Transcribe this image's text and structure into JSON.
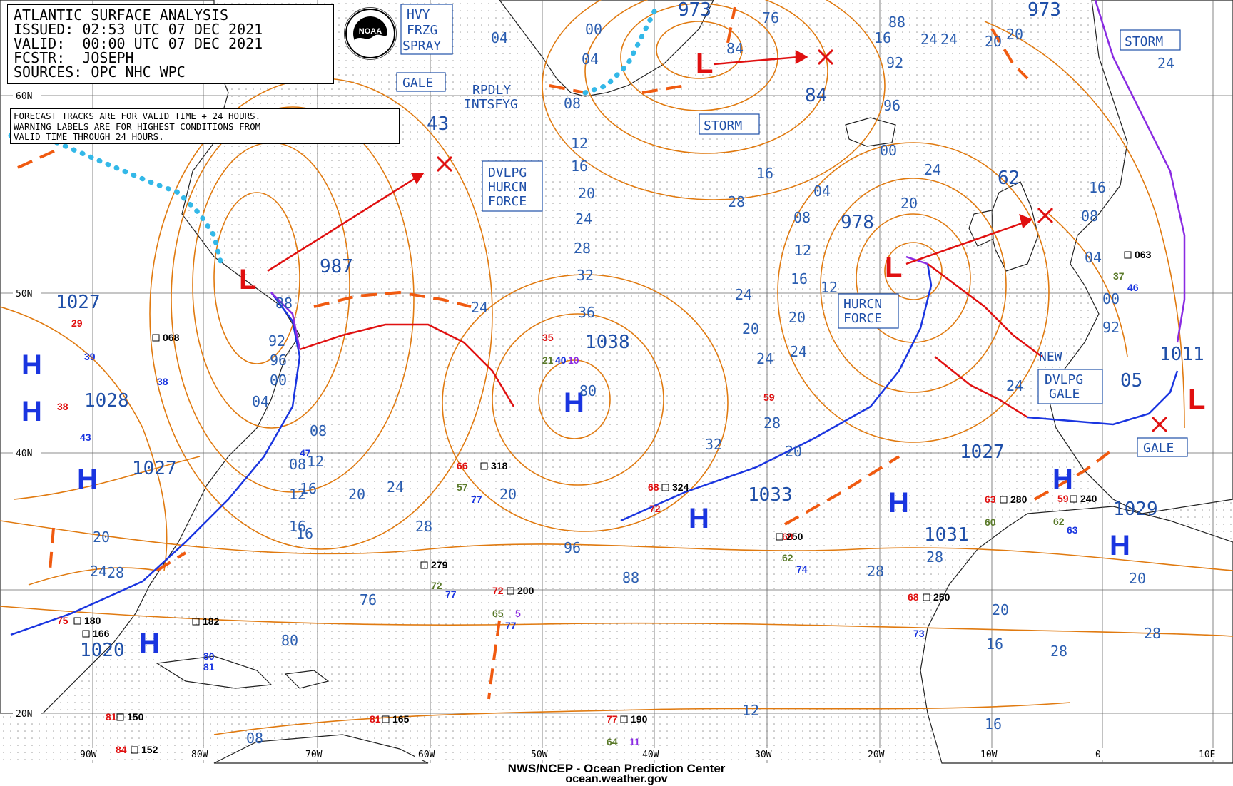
{
  "header": {
    "lines": [
      "ATLANTIC SURFACE ANALYSIS",
      "ISSUED: 02:53 UTC 07 DEC 2021",
      "VALID:  00:00 UTC 07 DEC 2021",
      "FCSTR:  JOSEPH",
      "SOURCES: OPC NHC WPC"
    ]
  },
  "notes": [
    "FORECAST TRACKS ARE FOR VALID TIME + 24 HOURS.",
    "WARNING LABELS ARE FOR HIGHEST CONDITIONS FROM",
    "VALID TIME THROUGH 24 HOURS."
  ],
  "logo": {
    "icon": "noaa-logo-icon",
    "text": "NOAA"
  },
  "footer": {
    "line1": "NWS/NCEP - Ocean Prediction Center",
    "line2": "ocean.weather.gov"
  },
  "lat_labels": [
    "60N",
    "50N",
    "40N",
    "20N"
  ],
  "lon_labels": [
    "90W",
    "80W",
    "70W",
    "60W",
    "50W",
    "40W",
    "30W",
    "20W",
    "10W",
    "0",
    "10E"
  ],
  "warnings": {
    "hvy_frzg_spray": [
      "HVY",
      "FRZG",
      "SPRAY"
    ],
    "gale_nw": "GALE",
    "storm_center": "STORM",
    "storm_ne": "STORM",
    "dvlpg_hurcn": [
      "DVLPG",
      "HURCN",
      "FORCE"
    ],
    "hurcn_force": [
      "HURCN",
      "FORCE"
    ],
    "dvlpg_gale": [
      "DVLPG",
      "GALE"
    ],
    "gale_e": "GALE",
    "rpdly": [
      "RPDLY",
      "INTSFYG"
    ],
    "new": "NEW"
  },
  "pressure_centers": {
    "low_987": "987",
    "low_973a": "973",
    "low_973b": "973",
    "low_978": "978",
    "low_1011": "1011",
    "high_1027a": "1027",
    "high_1028": "1028",
    "high_1027b": "1027",
    "high_1020": "1020",
    "high_1038": "1038",
    "high_1033": "1033",
    "high_1027c": "1027",
    "high_1031": "1031",
    "high_1029": "1029",
    "fcst_43": "43",
    "fcst_84": "84",
    "fcst_62": "62",
    "fcst_05": "05"
  },
  "center_symbols": {
    "high": "H",
    "low": "L"
  },
  "isobar_labels": [
    "04",
    "00",
    "04",
    "08",
    "12",
    "16",
    "20",
    "24",
    "28",
    "32",
    "36",
    "80",
    "76",
    "84",
    "88",
    "92",
    "96",
    "00",
    "04",
    "08",
    "12",
    "16",
    "20",
    "24",
    "28",
    "32",
    "20",
    "24",
    "28",
    "16",
    "08",
    "12",
    "16",
    "20",
    "24",
    "88",
    "92",
    "96",
    "00",
    "04",
    "08",
    "12",
    "16",
    "20",
    "24",
    "28",
    "24",
    "20",
    "16",
    "28",
    "28",
    "24",
    "20",
    "24",
    "20",
    "16",
    "08",
    "04",
    "00",
    "92",
    "96",
    "88",
    "76",
    "80",
    "08",
    "12",
    "16",
    "20",
    "28",
    "24",
    "20",
    "16",
    "24",
    "12",
    "16",
    "28",
    "24",
    "20",
    "24",
    "20",
    "28"
  ],
  "observations": [
    {
      "t": "29",
      "c": "#e01010"
    },
    {
      "t": "39",
      "c": "#1a35e0"
    },
    {
      "t": "068",
      "c": "#000"
    },
    {
      "t": "38",
      "c": "#1a35e0"
    },
    {
      "t": "35",
      "c": "#e01010"
    },
    {
      "t": "21",
      "c": "#5a7a2a"
    },
    {
      "t": "40",
      "c": "#1a35e0"
    },
    {
      "t": "10",
      "c": "#8a2be2"
    },
    {
      "t": "66",
      "c": "#e01010"
    },
    {
      "t": "318",
      "c": "#000"
    },
    {
      "t": "57",
      "c": "#5a7a2a"
    },
    {
      "t": "77",
      "c": "#1a35e0"
    },
    {
      "t": "68",
      "c": "#e01010"
    },
    {
      "t": "324",
      "c": "#000"
    },
    {
      "t": "72",
      "c": "#e01010"
    },
    {
      "t": "279",
      "c": "#000"
    },
    {
      "t": "72",
      "c": "#5a7a2a"
    },
    {
      "t": "77",
      "c": "#1a35e0"
    },
    {
      "t": "72",
      "c": "#e01010"
    },
    {
      "t": "200",
      "c": "#000"
    },
    {
      "t": "65",
      "c": "#5a7a2a"
    },
    {
      "t": "5",
      "c": "#8a2be2"
    },
    {
      "t": "77",
      "c": "#1a35e0"
    },
    {
      "t": "68",
      "c": "#e01010"
    },
    {
      "t": "250",
      "c": "#000"
    },
    {
      "t": "62",
      "c": "#5a7a2a"
    },
    {
      "t": "74",
      "c": "#1a35e0"
    },
    {
      "t": "68",
      "c": "#e01010"
    },
    {
      "t": "250",
      "c": "#000"
    },
    {
      "t": "73",
      "c": "#1a35e0"
    },
    {
      "t": "63",
      "c": "#e01010"
    },
    {
      "t": "280",
      "c": "#000"
    },
    {
      "t": "60",
      "c": "#5a7a2a"
    },
    {
      "t": "59",
      "c": "#e01010"
    },
    {
      "t": "240",
      "c": "#000"
    },
    {
      "t": "63",
      "c": "#1a35e0"
    },
    {
      "t": "62",
      "c": "#5a7a2a"
    },
    {
      "t": "75",
      "c": "#e01010"
    },
    {
      "t": "180",
      "c": "#000"
    },
    {
      "t": "166",
      "c": "#000"
    },
    {
      "t": "182",
      "c": "#000"
    },
    {
      "t": "80",
      "c": "#1a35e0"
    },
    {
      "t": "81",
      "c": "#1a35e0"
    },
    {
      "t": "81",
      "c": "#e01010"
    },
    {
      "t": "150",
      "c": "#000"
    },
    {
      "t": "152",
      "c": "#000"
    },
    {
      "t": "84",
      "c": "#e01010"
    },
    {
      "t": "81",
      "c": "#e01010"
    },
    {
      "t": "165",
      "c": "#000"
    },
    {
      "t": "77",
      "c": "#e01010"
    },
    {
      "t": "190",
      "c": "#000"
    },
    {
      "t": "64",
      "c": "#5a7a2a"
    },
    {
      "t": "11",
      "c": "#8a2be2"
    },
    {
      "t": "59",
      "c": "#e01010"
    },
    {
      "t": "063",
      "c": "#000"
    },
    {
      "t": "37",
      "c": "#5a7a2a"
    },
    {
      "t": "46",
      "c": "#1a35e0"
    },
    {
      "t": "43",
      "c": "#1a35e0"
    },
    {
      "t": "38",
      "c": "#e01010"
    },
    {
      "t": "47",
      "c": "#1a35e0"
    }
  ],
  "colors": {
    "isobar": "#e07a10",
    "cold_front": "#1a35e0",
    "warm_front": "#e01010",
    "occluded_front": "#8a2be2",
    "trough": "#f05a10",
    "ice_edge": "#33b8e8",
    "label_blue": "#1f4fa8",
    "grid": "#555555"
  }
}
